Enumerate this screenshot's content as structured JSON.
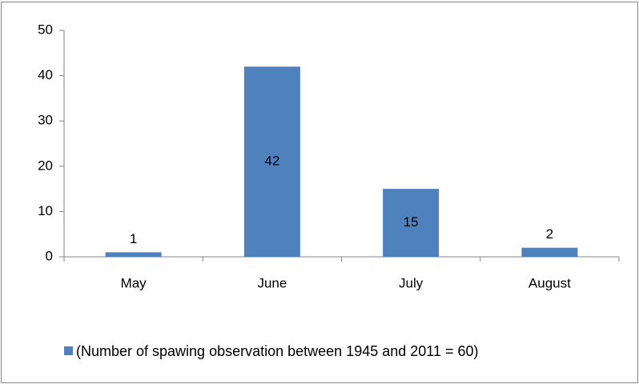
{
  "chart_data": {
    "type": "bar",
    "categories": [
      "May",
      "June",
      "July",
      "August"
    ],
    "series": [
      {
        "name": "(Number of spawing observation between 1945 and 2011 = 60)",
        "color": "#4f81bd",
        "values": [
          1,
          42,
          15,
          2
        ]
      }
    ],
    "ylim": [
      0,
      50
    ],
    "yticks": [
      0,
      10,
      20,
      30,
      40,
      50
    ],
    "grid": false,
    "legend": "bottom",
    "data_labels": true
  }
}
